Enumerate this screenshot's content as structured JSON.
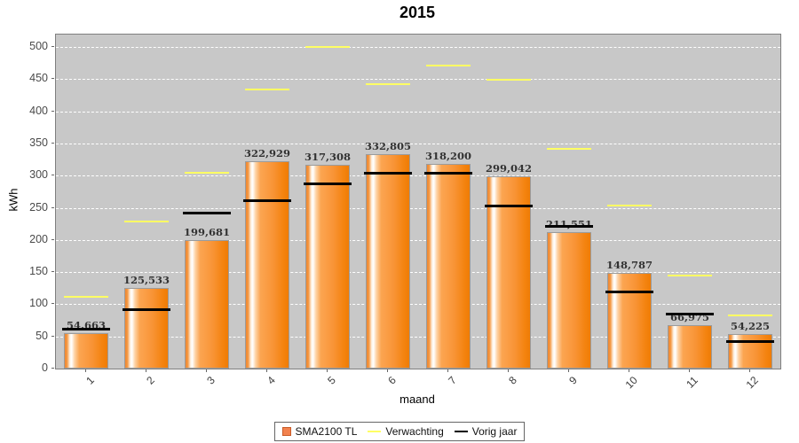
{
  "title": "2015",
  "chart_data": {
    "type": "bar",
    "title": "2015",
    "xlabel": "maand",
    "ylabel": "kWh",
    "ylim": [
      0,
      500
    ],
    "yticks": [
      0,
      50,
      100,
      150,
      200,
      250,
      300,
      350,
      400,
      450,
      500
    ],
    "categories": [
      "1",
      "2",
      "3",
      "4",
      "5",
      "6",
      "7",
      "8",
      "9",
      "10",
      "11",
      "12"
    ],
    "grid": "horizontal-dashed-white",
    "plot_bg": "#c8c8c8",
    "legend_position": "bottom",
    "series": [
      {
        "name": "SMA2100 TL",
        "render": "bar",
        "color": "#f6862a",
        "values": [
          54.663,
          125.533,
          199.681,
          322.929,
          317.308,
          332.805,
          318.2,
          299.042,
          211.551,
          148.787,
          66.975,
          54.225
        ],
        "labels": [
          "54,663",
          "125,533",
          "199,681",
          "322,929",
          "317,308",
          "332,805",
          "318,200",
          "299,042",
          "211,551",
          "148,787",
          "66,975",
          "54,225"
        ]
      },
      {
        "name": "Verwachting",
        "render": "tick-line",
        "color": "#ffff63",
        "values": [
          112,
          228,
          304,
          434,
          500,
          442,
          471,
          449,
          341,
          254,
          145,
          82
        ]
      },
      {
        "name": "Vorig jaar",
        "render": "tick-line",
        "color": "#000000",
        "values": [
          62,
          92,
          242,
          262,
          288,
          305,
          305,
          253,
          222,
          120,
          86,
          43
        ]
      }
    ]
  },
  "legend": {
    "items": [
      {
        "label": "SMA2100 TL",
        "swatch": "square",
        "color": "#f2824e"
      },
      {
        "label": "Verwachting",
        "swatch": "line",
        "color": "#ffff63"
      },
      {
        "label": "Vorig jaar",
        "swatch": "line",
        "color": "#000000"
      }
    ]
  }
}
